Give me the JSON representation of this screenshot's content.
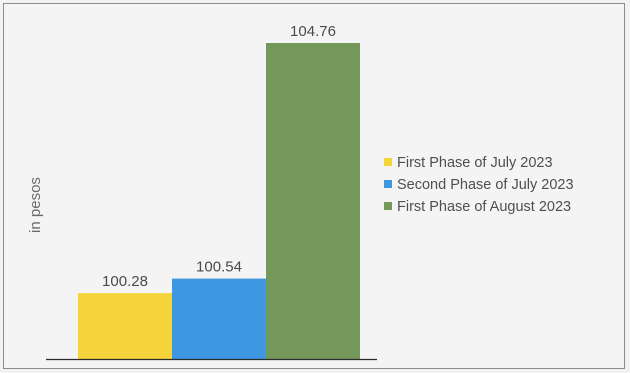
{
  "chart_data": {
    "type": "bar",
    "title": "",
    "xlabel": "",
    "ylabel": "in pesos",
    "ylim": [
      99.1,
      104.76
    ],
    "grid": false,
    "legend_position": "right",
    "series": [
      {
        "name": "First Phase of July 2023",
        "value": 100.28,
        "label": "100.28",
        "color": "#f5d33a"
      },
      {
        "name": "Second Phase of July 2023",
        "value": 100.54,
        "label": "100.54",
        "color": "#3e97e0"
      },
      {
        "name": "First Phase of August 2023",
        "value": 104.76,
        "label": "104.76",
        "color": "#73985a"
      }
    ]
  }
}
